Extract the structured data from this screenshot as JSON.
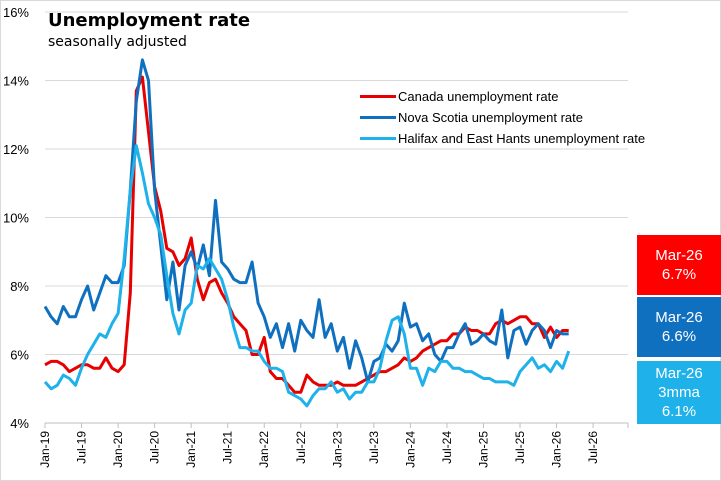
{
  "chart_data": {
    "type": "line",
    "title": "Unemployment rate",
    "subtitle": "seasonally adjusted",
    "xlabel": "",
    "ylabel": "",
    "ylim": [
      4,
      16
    ],
    "yticks": [
      "4%",
      "6%",
      "8%",
      "10%",
      "12%",
      "14%",
      "16%"
    ],
    "ytick_values": [
      4,
      6,
      8,
      10,
      12,
      14,
      16
    ],
    "xticks": [
      "Jan-19",
      "Jul-19",
      "Jan-20",
      "Jul-20",
      "Jan-21",
      "Jul-21",
      "Jan-22",
      "Jul-22",
      "Jan-23",
      "Jul-23",
      "Jan-24",
      "Jul-24",
      "Jan-25",
      "Jul-25",
      "Jan-26",
      "Jul-26"
    ],
    "x_start": "Jan-19",
    "x_end_axis": "Dec-26",
    "grid": true,
    "legend_position": "top-right",
    "series": [
      {
        "name": "Canada unemployment rate",
        "color": "#e60000",
        "values": [
          5.7,
          5.8,
          5.8,
          5.7,
          5.5,
          5.6,
          5.7,
          5.7,
          5.6,
          5.6,
          5.9,
          5.6,
          5.5,
          5.7,
          7.8,
          13.7,
          14.1,
          12.5,
          10.9,
          10.2,
          9.1,
          9.0,
          8.6,
          8.8,
          9.4,
          8.2,
          7.6,
          8.1,
          8.2,
          7.8,
          7.5,
          7.1,
          6.9,
          6.7,
          6.0,
          6.0,
          6.5,
          5.5,
          5.3,
          5.3,
          5.1,
          4.9,
          4.9,
          5.4,
          5.2,
          5.1,
          5.1,
          5.1,
          5.2,
          5.1,
          5.1,
          5.1,
          5.2,
          5.3,
          5.4,
          5.5,
          5.5,
          5.6,
          5.7,
          5.9,
          5.8,
          5.9,
          6.1,
          6.2,
          6.3,
          6.4,
          6.4,
          6.6,
          6.6,
          6.8,
          6.7,
          6.7,
          6.6,
          6.6,
          6.9,
          7.0,
          6.9,
          7.0,
          7.1,
          7.1,
          6.9,
          6.9,
          6.5,
          6.8,
          6.5,
          6.7,
          6.7
        ]
      },
      {
        "name": "Nova Scotia unemployment rate",
        "color": "#1070c0",
        "values": [
          7.4,
          7.1,
          6.9,
          7.4,
          7.1,
          7.1,
          7.6,
          8.0,
          7.3,
          7.8,
          8.3,
          8.1,
          8.1,
          8.6,
          10.8,
          13.4,
          14.6,
          14.0,
          10.8,
          9.2,
          7.6,
          8.7,
          7.3,
          8.6,
          9.0,
          8.5,
          9.2,
          8.3,
          10.5,
          8.7,
          8.5,
          8.2,
          8.1,
          8.1,
          8.7,
          7.5,
          7.1,
          6.5,
          6.9,
          6.2,
          6.9,
          6.1,
          7.0,
          6.7,
          6.5,
          7.6,
          6.5,
          6.9,
          6.1,
          6.5,
          5.6,
          6.4,
          5.9,
          5.2,
          5.8,
          5.9,
          6.3,
          6.1,
          6.4,
          7.5,
          6.8,
          6.9,
          6.4,
          6.6,
          6.0,
          5.8,
          6.2,
          6.2,
          6.6,
          6.9,
          6.3,
          6.4,
          6.6,
          6.4,
          6.3,
          7.3,
          5.9,
          6.7,
          6.8,
          6.3,
          6.7,
          6.9,
          6.7,
          6.2,
          6.7,
          6.6,
          6.6
        ]
      },
      {
        "name": "Halifax and East Hants unemployment rate",
        "color": "#1eb1ea",
        "values": [
          5.2,
          5.0,
          5.1,
          5.4,
          5.3,
          5.1,
          5.6,
          6.0,
          6.3,
          6.6,
          6.5,
          6.9,
          7.2,
          8.8,
          10.8,
          12.1,
          11.3,
          10.4,
          10.0,
          9.5,
          8.3,
          7.2,
          6.6,
          7.3,
          7.5,
          8.6,
          8.5,
          8.8,
          8.5,
          8.2,
          7.6,
          6.8,
          6.2,
          6.2,
          6.1,
          6.1,
          5.8,
          5.6,
          5.6,
          5.5,
          4.9,
          4.8,
          4.7,
          4.5,
          4.8,
          5.0,
          5.0,
          5.2,
          4.9,
          5.0,
          4.7,
          4.9,
          4.9,
          5.2,
          5.2,
          5.6,
          6.4,
          7.0,
          7.1,
          6.6,
          5.6,
          5.6,
          5.1,
          5.6,
          5.5,
          5.8,
          5.8,
          5.6,
          5.6,
          5.5,
          5.5,
          5.4,
          5.3,
          5.3,
          5.2,
          5.2,
          5.2,
          5.1,
          5.5,
          5.7,
          5.9,
          5.6,
          5.7,
          5.5,
          5.8,
          5.6,
          6.1
        ]
      }
    ]
  },
  "legend": {
    "items": [
      {
        "label": "Canada unemployment rate",
        "color": "#e60000"
      },
      {
        "label": "Nova Scotia unemployment rate",
        "color": "#1070c0"
      },
      {
        "label": "Halifax and East Hants unemployment rate",
        "color": "#1eb1ea"
      }
    ]
  },
  "callouts": {
    "canada": {
      "line1": "Mar-26",
      "line2": "6.7%",
      "color": "#ff0000"
    },
    "nova_scotia": {
      "line1": "Mar-26",
      "line2": "6.6%",
      "color": "#1070c0"
    },
    "halifax": {
      "line1": "Mar-26",
      "line2": "3mma",
      "line3": "6.1%",
      "color": "#1eb1ea"
    }
  }
}
